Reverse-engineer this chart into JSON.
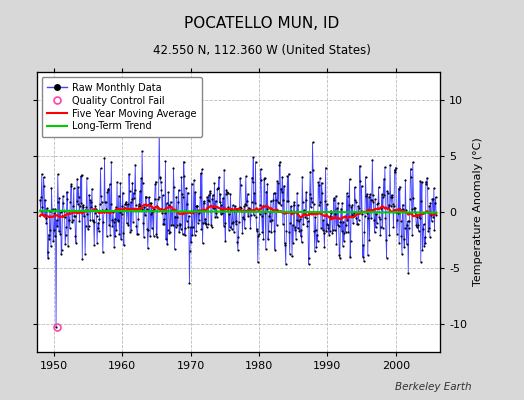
{
  "title": "POCATELLO MUN, ID",
  "subtitle": "42.550 N, 112.360 W (United States)",
  "ylabel": "Temperature Anomaly (°C)",
  "watermark": "Berkeley Earth",
  "xlim": [
    1947.5,
    2006.5
  ],
  "ylim": [
    -12.5,
    12.5
  ],
  "yticks": [
    -10,
    -5,
    0,
    5,
    10
  ],
  "xticks": [
    1950,
    1960,
    1970,
    1980,
    1990,
    2000
  ],
  "bg_color": "#d8d8d8",
  "plot_bg_color": "#ffffff",
  "grid_color": "#bbbbbb",
  "raw_line_color": "#4444ff",
  "raw_dot_color": "#000000",
  "moving_avg_color": "#ff0000",
  "trend_color": "#00cc00",
  "qc_fail_color": "#ff44aa",
  "seed": 42,
  "start_year": 1948,
  "end_year": 2005,
  "qc_fail_x": 1950.4,
  "qc_fail_y": -10.3
}
